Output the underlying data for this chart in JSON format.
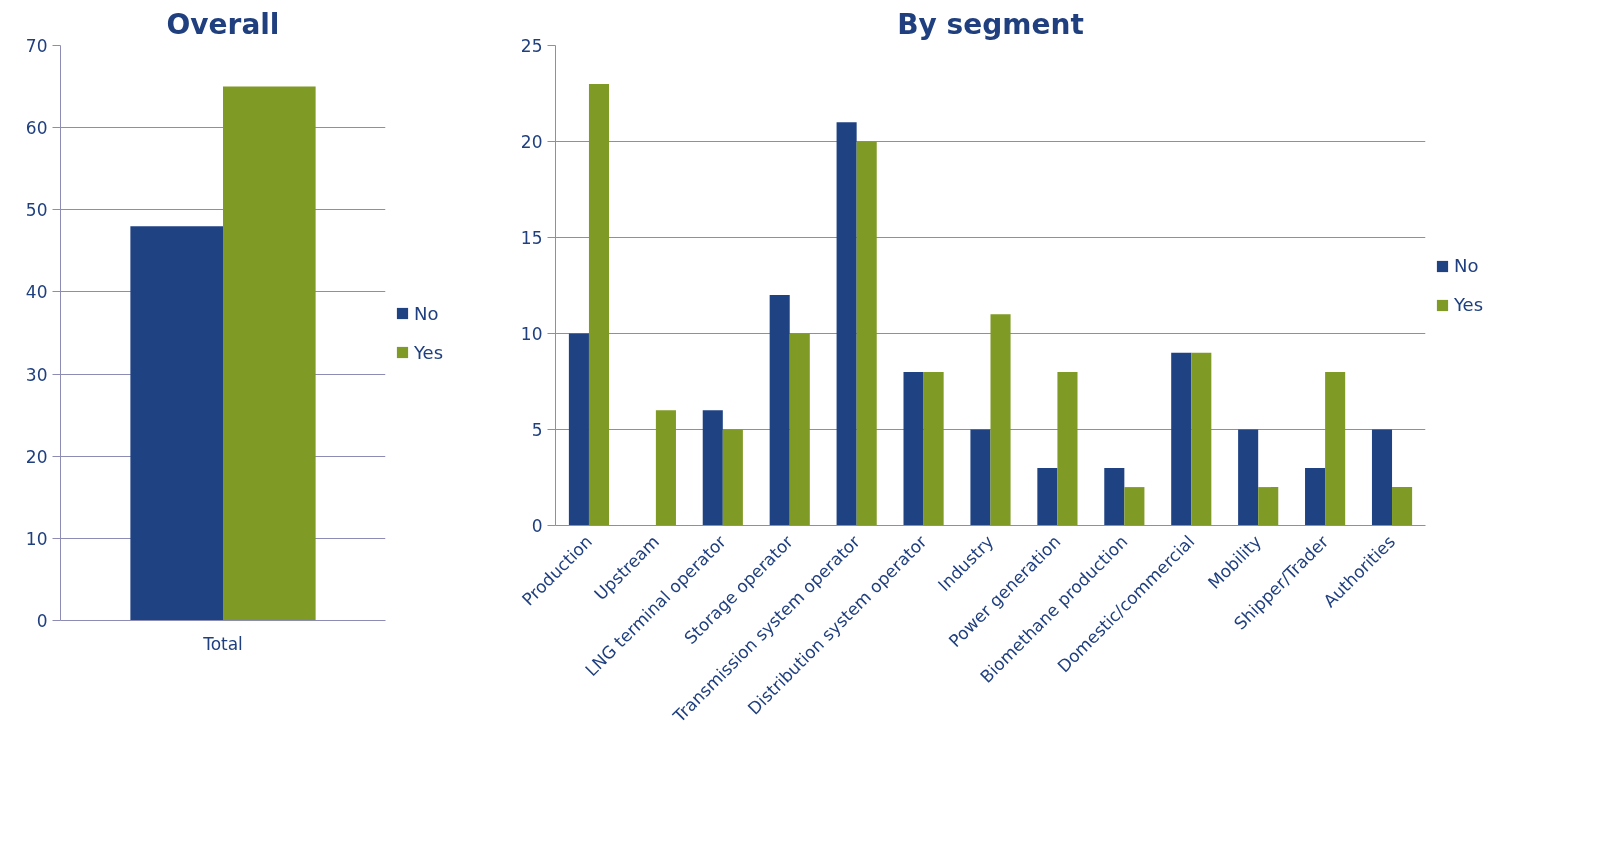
{
  "chart_data": [
    {
      "type": "bar",
      "title": "Overall",
      "categories": [
        "Total"
      ],
      "ylim": [
        0,
        70
      ],
      "yticks": [
        0,
        10,
        20,
        30,
        40,
        50,
        60,
        70
      ],
      "grid": "y",
      "legend": "right",
      "series": [
        {
          "name": "No",
          "color": "#1f4283",
          "values": [
            48
          ]
        },
        {
          "name": "Yes",
          "color": "#7f9a25",
          "values": [
            65
          ]
        }
      ]
    },
    {
      "type": "bar",
      "title": "By segment",
      "categories": [
        "Production",
        "Upstream",
        "LNG terminal operator",
        "Storage operator",
        "Transmission system operator",
        "Distribution system operator",
        "Industry",
        "Power generation",
        "Biomethane production",
        "Domestic/commercial",
        "Mobility",
        "Shipper/Trader",
        "Authorities"
      ],
      "ylim": [
        0,
        25
      ],
      "yticks": [
        0,
        5,
        10,
        15,
        20,
        25
      ],
      "grid": "y",
      "legend": "right",
      "series": [
        {
          "name": "No",
          "color": "#1f4283",
          "values": [
            10,
            0,
            6,
            12,
            21,
            8,
            5,
            3,
            3,
            9,
            5,
            3,
            5
          ]
        },
        {
          "name": "Yes",
          "color": "#7f9a25",
          "values": [
            23,
            6,
            5,
            10,
            20,
            8,
            11,
            8,
            2,
            9,
            2,
            8,
            2
          ]
        }
      ]
    }
  ]
}
